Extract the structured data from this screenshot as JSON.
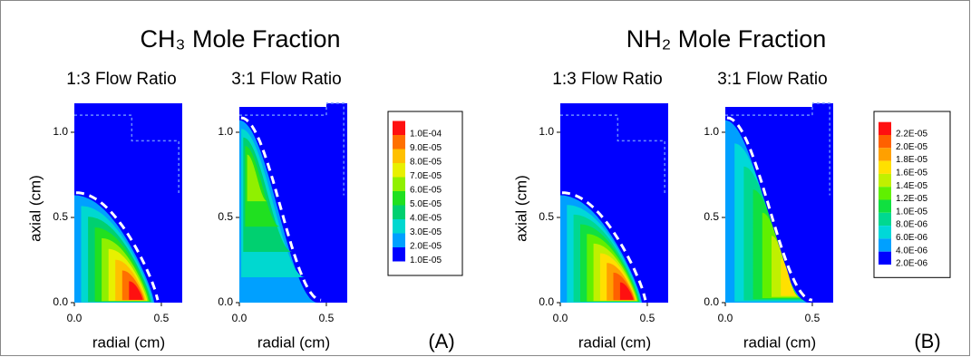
{
  "figures": [
    {
      "title": "CH₃ Mole Fraction",
      "label": "(A)",
      "colorbar": {
        "labels": [
          "1.0E-04",
          "9.0E-05",
          "8.0E-05",
          "7.0E-05",
          "6.0E-05",
          "5.0E-05",
          "4.0E-05",
          "3.0E-05",
          "2.0E-05",
          "1.0E-05"
        ],
        "colors": [
          "#ff1010",
          "#ff7000",
          "#ffc000",
          "#e8f000",
          "#90f000",
          "#20e020",
          "#00d070",
          "#00d8d0",
          "#00a0ff",
          "#0000ff"
        ]
      },
      "plots": [
        {
          "subtitle": "1:3 Flow Ratio",
          "xlabel": "radial (cm)",
          "ylabel": "axial (cm)",
          "xlim": [
            0,
            0.62
          ],
          "ylim": [
            0,
            1.17
          ],
          "xticks": [
            {
              "value": 0,
              "label": "0.0"
            },
            0.5
          ],
          "yticks": [
            {
              "value": 0,
              "label": "0.0"
            },
            0.5,
            {
              "value": 1,
              "label": "1.0"
            }
          ]
        },
        {
          "subtitle": "3:1 Flow Ratio",
          "xlabel": "radial (cm)",
          "xlim": [
            0,
            0.62
          ],
          "ylim": [
            0,
            1.17
          ],
          "xticks": [
            {
              "value": 0,
              "label": "0.0"
            },
            0.5
          ],
          "yticks": [
            {
              "value": 0,
              "label": "0.0"
            },
            0.5,
            {
              "value": 1,
              "label": "1.0"
            }
          ]
        }
      ]
    },
    {
      "title": "NH₂ Mole Fraction",
      "label": "(B)",
      "colorbar": {
        "labels": [
          "2.2E-05",
          "2.0E-05",
          "1.8E-05",
          "1.6E-05",
          "1.4E-05",
          "1.2E-05",
          "1.0E-05",
          "8.0E-06",
          "6.0E-06",
          "4.0E-06",
          "2.0E-06"
        ],
        "colors": [
          "#ff1010",
          "#ff6000",
          "#ffa000",
          "#ffe000",
          "#c0f000",
          "#60f000",
          "#10e040",
          "#00d890",
          "#00d8d8",
          "#00a0ff",
          "#0000ff"
        ]
      },
      "plots": [
        {
          "subtitle": "1:3 Flow Ratio",
          "xlabel": "radial (cm)",
          "ylabel": "axial (cm)",
          "xlim": [
            0,
            0.62
          ],
          "ylim": [
            0,
            1.17
          ],
          "xticks": [
            {
              "value": 0,
              "label": "0.0"
            },
            0.5
          ],
          "yticks": [
            {
              "value": 0,
              "label": "0.0"
            },
            0.5,
            {
              "value": 1,
              "label": "1.0"
            }
          ]
        },
        {
          "subtitle": "3:1 Flow Ratio",
          "xlabel": "radial (cm)",
          "xlim": [
            0,
            0.62
          ],
          "ylim": [
            0,
            1.17
          ],
          "xticks": [
            {
              "value": 0,
              "label": "0.0"
            },
            0.5
          ],
          "yticks": [
            {
              "value": 0,
              "label": "0.0"
            },
            0.5,
            {
              "value": 1,
              "label": "1.0"
            }
          ]
        }
      ]
    }
  ]
}
